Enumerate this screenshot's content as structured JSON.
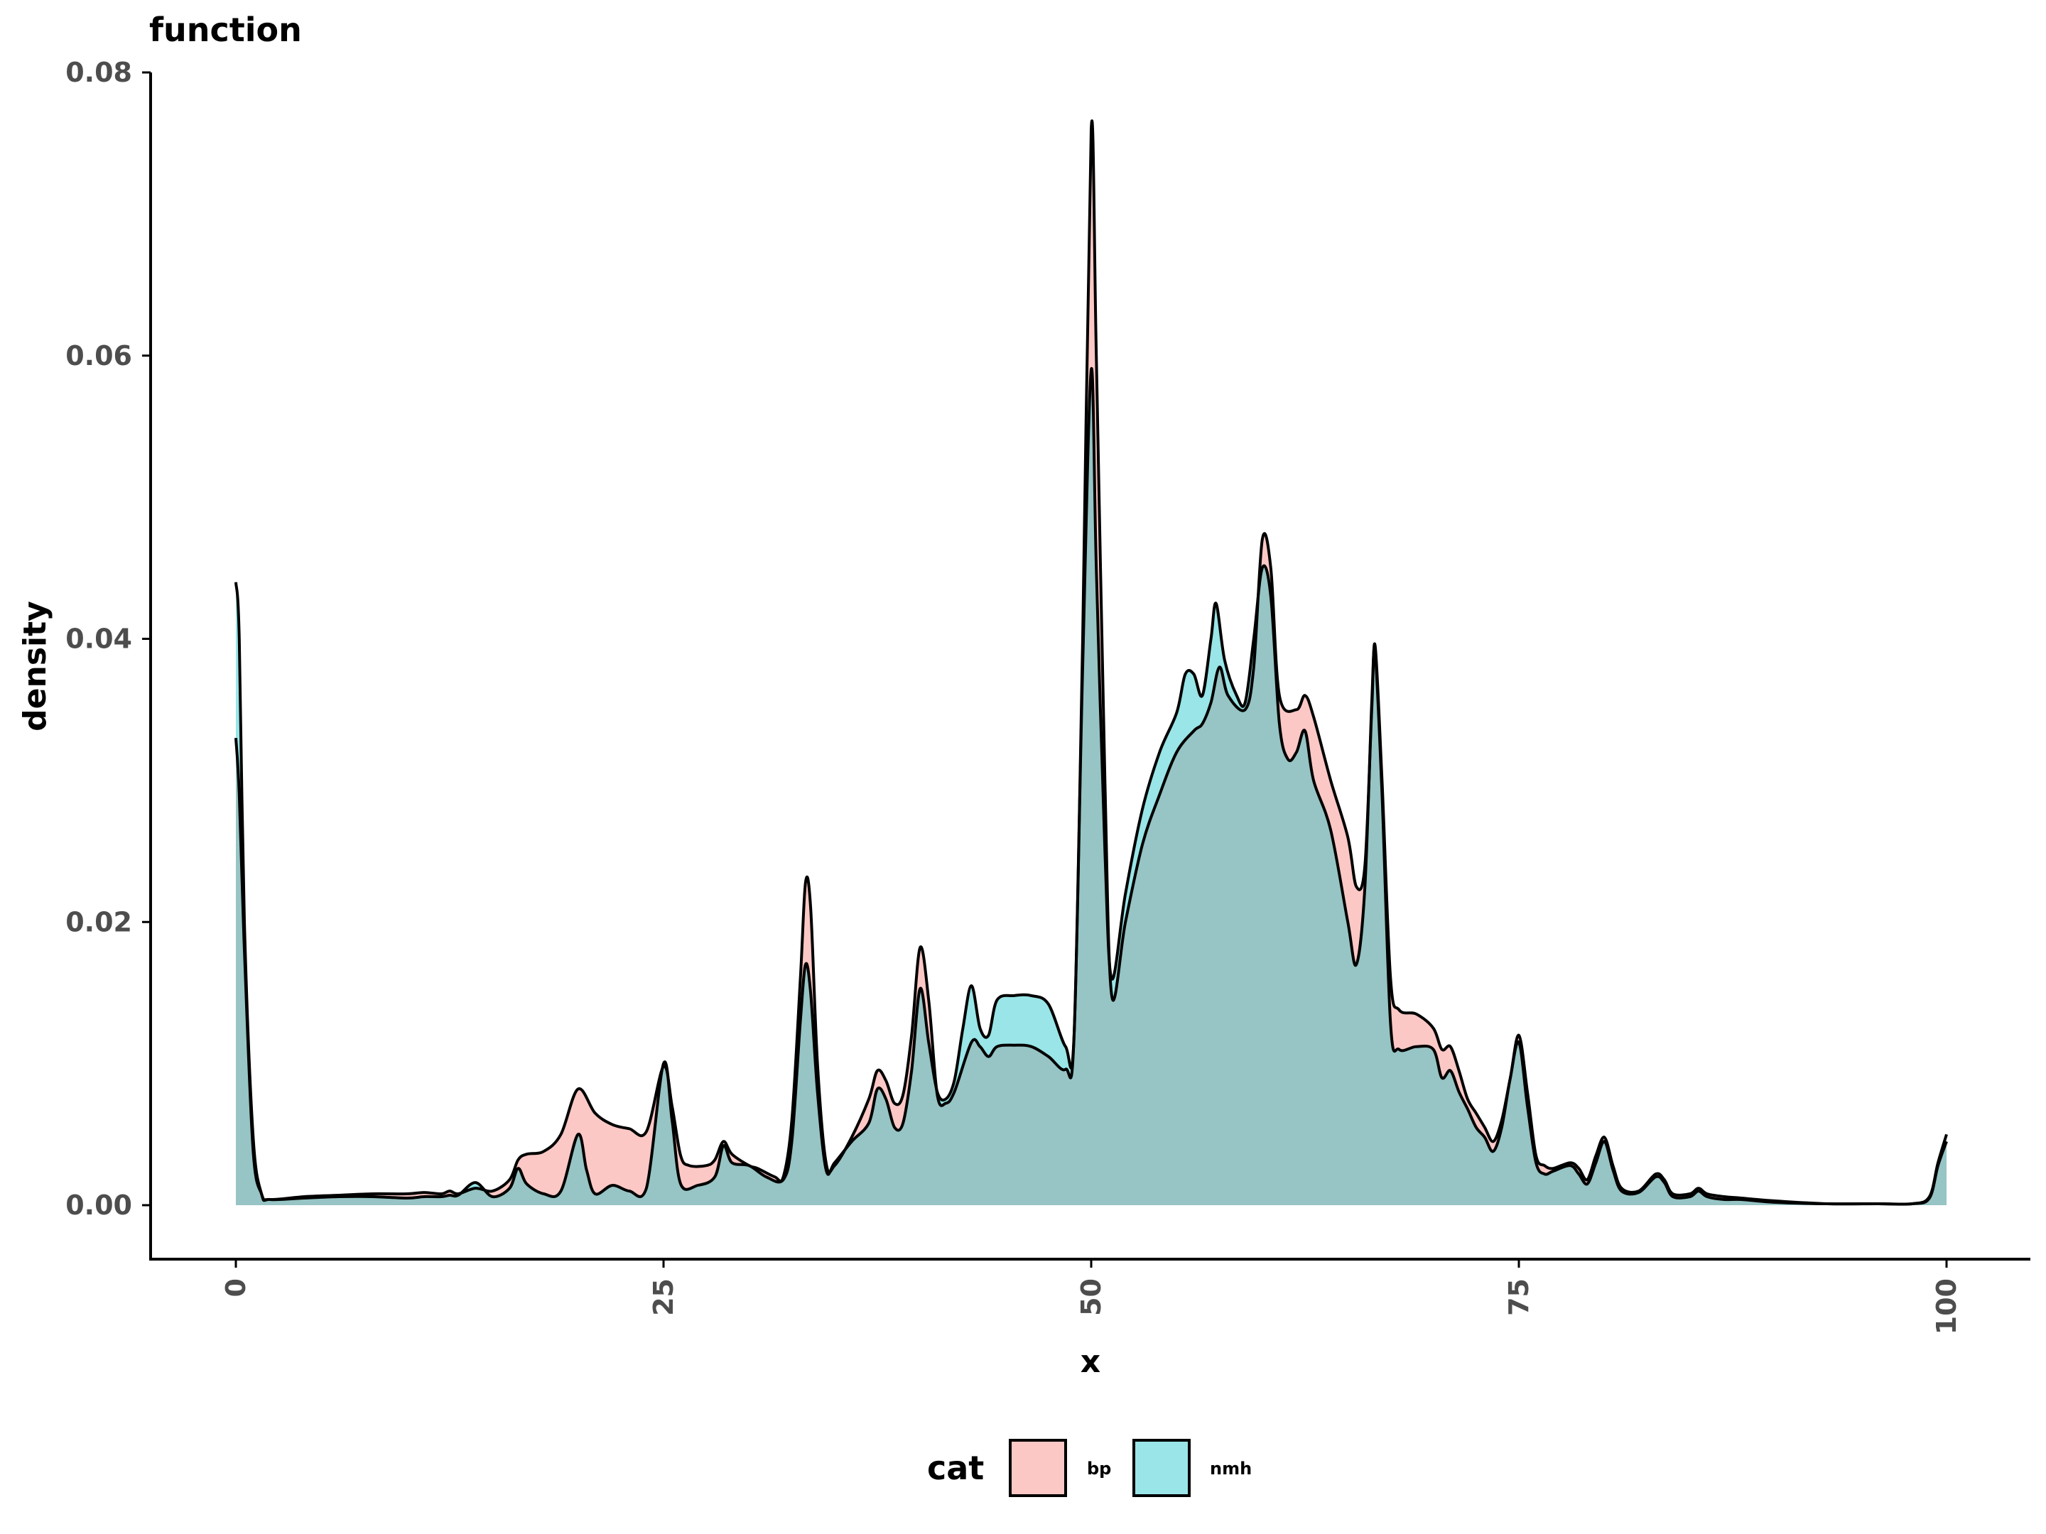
{
  "chart_data": {
    "type": "area",
    "title": "function",
    "xlabel": "x",
    "ylabel": "density",
    "xlim": [
      0,
      100
    ],
    "ylim": [
      0,
      0.08
    ],
    "x_ticks": [
      "0",
      "25",
      "50",
      "75",
      "100"
    ],
    "y_ticks": [
      "0.00",
      "0.02",
      "0.04",
      "0.06",
      "0.08"
    ],
    "grid": false,
    "legend": {
      "title": "cat",
      "position": "bottom",
      "entries": [
        {
          "label": "bp",
          "color": "#F8766D"
        },
        {
          "label": "nmh",
          "color": "#00BFC4"
        }
      ]
    },
    "series": [
      {
        "name": "bp",
        "color": "#F8766D",
        "points": [
          [
            0,
            0.033
          ],
          [
            0.2,
            0.029
          ],
          [
            0.5,
            0.018
          ],
          [
            1,
            0.004
          ],
          [
            1.5,
            0.0008
          ],
          [
            2,
            0.0004
          ],
          [
            4,
            0.0006
          ],
          [
            6,
            0.0007
          ],
          [
            8,
            0.0008
          ],
          [
            10,
            0.0008
          ],
          [
            11,
            0.0009
          ],
          [
            12,
            0.0008
          ],
          [
            12.5,
            0.001
          ],
          [
            13,
            0.0008
          ],
          [
            14,
            0.0012
          ],
          [
            15,
            0.001
          ],
          [
            16,
            0.0018
          ],
          [
            16.5,
            0.0032
          ],
          [
            17,
            0.0036
          ],
          [
            18,
            0.0038
          ],
          [
            19,
            0.005
          ],
          [
            20,
            0.0082
          ],
          [
            21,
            0.0065
          ],
          [
            22,
            0.0057
          ],
          [
            23,
            0.0054
          ],
          [
            24,
            0.0052
          ],
          [
            25,
            0.0098
          ],
          [
            25.5,
            0.007
          ],
          [
            26,
            0.0035
          ],
          [
            26.5,
            0.0028
          ],
          [
            27.5,
            0.0028
          ],
          [
            28,
            0.0032
          ],
          [
            28.5,
            0.0045
          ],
          [
            29,
            0.0036
          ],
          [
            30,
            0.0028
          ],
          [
            30.5,
            0.0026
          ],
          [
            31.5,
            0.002
          ],
          [
            32,
            0.002
          ],
          [
            32.5,
            0.006
          ],
          [
            33,
            0.016
          ],
          [
            33.3,
            0.0228
          ],
          [
            33.6,
            0.021
          ],
          [
            34,
            0.01
          ],
          [
            34.5,
            0.003
          ],
          [
            35,
            0.0028
          ],
          [
            36,
            0.0048
          ],
          [
            37,
            0.0075
          ],
          [
            37.5,
            0.0095
          ],
          [
            38,
            0.0088
          ],
          [
            38.5,
            0.0072
          ],
          [
            39,
            0.0078
          ],
          [
            39.5,
            0.012
          ],
          [
            40,
            0.0182
          ],
          [
            40.5,
            0.0145
          ],
          [
            41,
            0.0078
          ],
          [
            41.5,
            0.0072
          ],
          [
            42,
            0.008
          ],
          [
            43,
            0.0115
          ],
          [
            43.5,
            0.0112
          ],
          [
            44,
            0.0105
          ],
          [
            44.5,
            0.0112
          ],
          [
            45.5,
            0.0113
          ],
          [
            46.5,
            0.0112
          ],
          [
            47.5,
            0.0105
          ],
          [
            48.5,
            0.0096
          ],
          [
            49,
            0.012
          ],
          [
            49.5,
            0.04
          ],
          [
            50,
            0.076
          ],
          [
            50.3,
            0.06
          ],
          [
            50.8,
            0.03
          ],
          [
            51.2,
            0.0148
          ],
          [
            52,
            0.02
          ],
          [
            53,
            0.0255
          ],
          [
            54,
            0.029
          ],
          [
            55,
            0.032
          ],
          [
            56,
            0.0335
          ],
          [
            56.5,
            0.034
          ],
          [
            57,
            0.0355
          ],
          [
            57.5,
            0.038
          ],
          [
            58,
            0.036
          ],
          [
            59,
            0.035
          ],
          [
            59.5,
            0.038
          ],
          [
            60,
            0.047
          ],
          [
            60.5,
            0.045
          ],
          [
            61,
            0.036
          ],
          [
            62,
            0.035
          ],
          [
            62.5,
            0.036
          ],
          [
            63,
            0.0345
          ],
          [
            64,
            0.03
          ],
          [
            65,
            0.026
          ],
          [
            65.5,
            0.0225
          ],
          [
            66,
            0.024
          ],
          [
            66.4,
            0.035
          ],
          [
            66.6,
            0.0395
          ],
          [
            67,
            0.03
          ],
          [
            67.5,
            0.016
          ],
          [
            68,
            0.0138
          ],
          [
            69,
            0.0135
          ],
          [
            70,
            0.0125
          ],
          [
            70.5,
            0.011
          ],
          [
            71,
            0.0112
          ],
          [
            71.5,
            0.0095
          ],
          [
            72,
            0.0075
          ],
          [
            72.5,
            0.0065
          ],
          [
            73,
            0.0055
          ],
          [
            73.5,
            0.0045
          ],
          [
            74,
            0.006
          ],
          [
            74.5,
            0.009
          ],
          [
            75,
            0.012
          ],
          [
            75.5,
            0.008
          ],
          [
            76,
            0.0035
          ],
          [
            76.5,
            0.0028
          ],
          [
            77,
            0.0026
          ],
          [
            78,
            0.003
          ],
          [
            78.5,
            0.0026
          ],
          [
            79,
            0.0018
          ],
          [
            79.5,
            0.0035
          ],
          [
            80,
            0.0048
          ],
          [
            80.5,
            0.0028
          ],
          [
            81,
            0.0012
          ],
          [
            82,
            0.001
          ],
          [
            83,
            0.0022
          ],
          [
            83.5,
            0.0018
          ],
          [
            84,
            0.0008
          ],
          [
            85,
            0.0008
          ],
          [
            85.5,
            0.0012
          ],
          [
            86,
            0.0008
          ],
          [
            87,
            0.0006
          ],
          [
            88,
            0.0005
          ],
          [
            90,
            0.0003
          ],
          [
            93,
            0.0001
          ],
          [
            96,
            0.0001
          ],
          [
            98,
            0.0001
          ],
          [
            99,
            0.0006
          ],
          [
            99.5,
            0.003
          ],
          [
            100,
            0.005
          ]
        ]
      },
      {
        "name": "nmh",
        "color": "#00BFC4",
        "points": [
          [
            0,
            0.044
          ],
          [
            0.2,
            0.04
          ],
          [
            0.5,
            0.02
          ],
          [
            1,
            0.005
          ],
          [
            1.5,
            0.0008
          ],
          [
            2,
            0.0004
          ],
          [
            4,
            0.0005
          ],
          [
            6,
            0.0006
          ],
          [
            8,
            0.0006
          ],
          [
            10,
            0.0005
          ],
          [
            11,
            0.0006
          ],
          [
            12,
            0.0006
          ],
          [
            12.5,
            0.0007
          ],
          [
            13,
            0.0007
          ],
          [
            14,
            0.0016
          ],
          [
            15,
            0.0006
          ],
          [
            16,
            0.0012
          ],
          [
            16.5,
            0.0026
          ],
          [
            17,
            0.0015
          ],
          [
            18,
            0.0008
          ],
          [
            19,
            0.001
          ],
          [
            20,
            0.005
          ],
          [
            20.5,
            0.0025
          ],
          [
            21,
            0.0008
          ],
          [
            22,
            0.0014
          ],
          [
            23,
            0.001
          ],
          [
            24,
            0.0012
          ],
          [
            25,
            0.01
          ],
          [
            25.5,
            0.006
          ],
          [
            26,
            0.0015
          ],
          [
            27,
            0.0014
          ],
          [
            28,
            0.002
          ],
          [
            28.5,
            0.0042
          ],
          [
            29,
            0.003
          ],
          [
            30,
            0.0028
          ],
          [
            31,
            0.002
          ],
          [
            32,
            0.0018
          ],
          [
            32.5,
            0.0045
          ],
          [
            33,
            0.013
          ],
          [
            33.3,
            0.017
          ],
          [
            33.6,
            0.015
          ],
          [
            34,
            0.008
          ],
          [
            34.5,
            0.0025
          ],
          [
            35,
            0.003
          ],
          [
            36,
            0.0045
          ],
          [
            37,
            0.0058
          ],
          [
            37.5,
            0.0082
          ],
          [
            38,
            0.0075
          ],
          [
            38.5,
            0.0055
          ],
          [
            39,
            0.0058
          ],
          [
            39.5,
            0.0095
          ],
          [
            40,
            0.0153
          ],
          [
            40.5,
            0.0115
          ],
          [
            41,
            0.008
          ],
          [
            41.5,
            0.0075
          ],
          [
            42,
            0.0088
          ],
          [
            42.5,
            0.0125
          ],
          [
            43,
            0.0155
          ],
          [
            43.5,
            0.0125
          ],
          [
            44,
            0.012
          ],
          [
            44.5,
            0.0145
          ],
          [
            45.5,
            0.0148
          ],
          [
            46.5,
            0.0148
          ],
          [
            47.5,
            0.0142
          ],
          [
            48.5,
            0.0112
          ],
          [
            49,
            0.012
          ],
          [
            49.5,
            0.038
          ],
          [
            50,
            0.059
          ],
          [
            50.3,
            0.045
          ],
          [
            50.8,
            0.025
          ],
          [
            51.2,
            0.016
          ],
          [
            52,
            0.022
          ],
          [
            53,
            0.028
          ],
          [
            54,
            0.032
          ],
          [
            55,
            0.0348
          ],
          [
            55.5,
            0.0375
          ],
          [
            56,
            0.0375
          ],
          [
            56.5,
            0.036
          ],
          [
            57,
            0.04
          ],
          [
            57.3,
            0.0425
          ],
          [
            57.8,
            0.0385
          ],
          [
            58.5,
            0.036
          ],
          [
            59,
            0.0355
          ],
          [
            59.5,
            0.04
          ],
          [
            60,
            0.045
          ],
          [
            60.5,
            0.043
          ],
          [
            61,
            0.034
          ],
          [
            61.5,
            0.0315
          ],
          [
            62,
            0.032
          ],
          [
            62.5,
            0.0335
          ],
          [
            63,
            0.03
          ],
          [
            64,
            0.0265
          ],
          [
            65,
            0.02
          ],
          [
            65.5,
            0.017
          ],
          [
            66,
            0.0225
          ],
          [
            66.4,
            0.0355
          ],
          [
            66.6,
            0.039
          ],
          [
            67,
            0.029
          ],
          [
            67.5,
            0.0128
          ],
          [
            68,
            0.011
          ],
          [
            69,
            0.0112
          ],
          [
            70,
            0.011
          ],
          [
            70.5,
            0.009
          ],
          [
            71,
            0.0095
          ],
          [
            71.5,
            0.008
          ],
          [
            72,
            0.0068
          ],
          [
            72.5,
            0.0055
          ],
          [
            73,
            0.0048
          ],
          [
            73.5,
            0.0038
          ],
          [
            74,
            0.0055
          ],
          [
            74.5,
            0.009
          ],
          [
            75,
            0.0115
          ],
          [
            75.5,
            0.007
          ],
          [
            76,
            0.003
          ],
          [
            76.5,
            0.0022
          ],
          [
            77,
            0.0024
          ],
          [
            78,
            0.0028
          ],
          [
            78.5,
            0.0022
          ],
          [
            79,
            0.0015
          ],
          [
            79.5,
            0.003
          ],
          [
            80,
            0.0045
          ],
          [
            80.5,
            0.0025
          ],
          [
            81,
            0.001
          ],
          [
            82,
            0.0009
          ],
          [
            83,
            0.002
          ],
          [
            83.5,
            0.0016
          ],
          [
            84,
            0.0006
          ],
          [
            85,
            0.0006
          ],
          [
            85.5,
            0.001
          ],
          [
            86,
            0.0006
          ],
          [
            87,
            0.0004
          ],
          [
            88,
            0.0004
          ],
          [
            90,
            0.0002
          ],
          [
            93,
            0.0001
          ],
          [
            96,
            0.0001
          ],
          [
            98,
            0.0001
          ],
          [
            99,
            0.0005
          ],
          [
            99.5,
            0.0028
          ],
          [
            100,
            0.0045
          ]
        ]
      }
    ]
  }
}
